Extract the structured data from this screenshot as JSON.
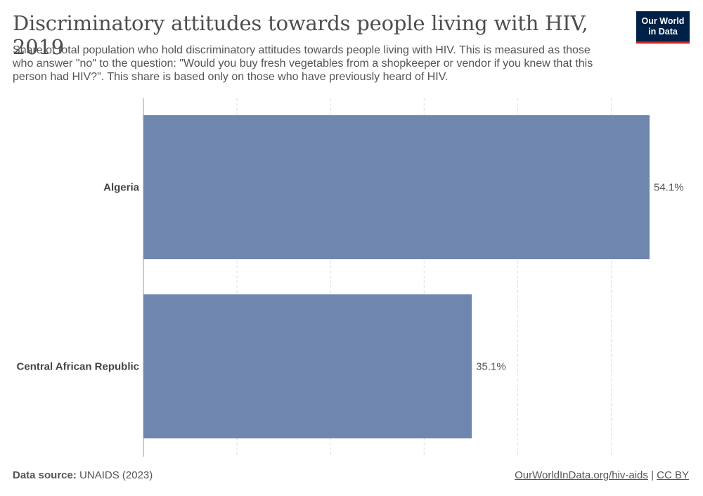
{
  "header": {
    "title": "Discriminatory attitudes towards people living with HIV, 2019",
    "subtitle": "Share of total population who hold discriminatory attitudes towards people living with HIV. This is measured as those who answer \"no\" to the question: \"Would you buy fresh vegetables from a shopkeeper or vendor if you knew that this person had HIV?\". This share is based only on those who have previously heard of HIV."
  },
  "logo": {
    "line1": "Our World",
    "line2": "in Data"
  },
  "footer": {
    "source_label": "Data source:",
    "source_value": "UNAIDS (2023)",
    "link_text": "OurWorldInData.org/hiv-aids",
    "separator": "|",
    "license": "CC BY"
  },
  "colors": {
    "bar": "#6f87ae",
    "grid": "#dddddd",
    "axis": "#999999",
    "logo_bg": "#002147",
    "logo_accent": "#ce261e"
  },
  "chart_data": {
    "type": "bar",
    "orientation": "horizontal",
    "categories": [
      "Algeria",
      "Central African Republic"
    ],
    "values": [
      54.1,
      35.1
    ],
    "value_labels": [
      "54.1%",
      "35.1%"
    ],
    "xlim": [
      0,
      56
    ],
    "grid": true
  }
}
